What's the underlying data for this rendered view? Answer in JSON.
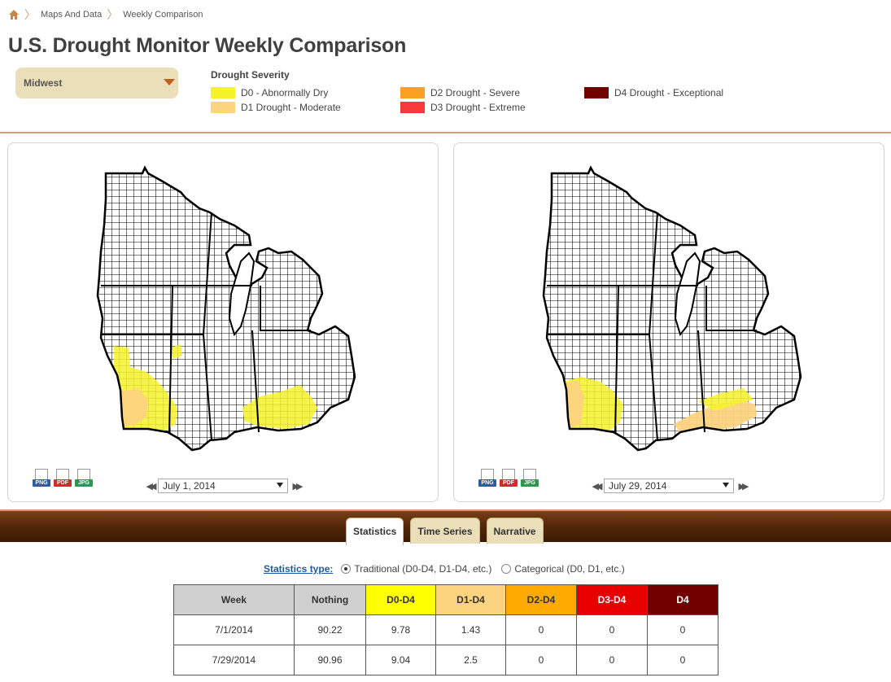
{
  "breadcrumb": {
    "items": [
      "Maps And Data",
      "Weekly Comparison"
    ]
  },
  "page_title": "U.S. Drought Monitor Weekly Comparison",
  "region_select": {
    "value": "Midwest"
  },
  "legend": {
    "title": "Drought Severity",
    "items": [
      {
        "label": "D0 - Abnormally Dry",
        "color": "#f5f22a"
      },
      {
        "label": "D1 Drought - Moderate",
        "color": "#fcd37f"
      },
      {
        "label": "D2 Drought - Severe",
        "color": "#fba020"
      },
      {
        "label": "D3 Drought - Extreme",
        "color": "#f8393a"
      },
      {
        "label": "D4 Drought - Exceptional",
        "color": "#730000"
      }
    ]
  },
  "left_map": {
    "date": "July 1, 2014"
  },
  "right_map": {
    "date": "July 29, 2014"
  },
  "exports": {
    "png": "PNG",
    "pdf": "PDF",
    "jpg": "JPG"
  },
  "tabs": [
    "Statistics",
    "Time Series",
    "Narrative"
  ],
  "statistics_type": {
    "label": "Statistics type",
    "options": [
      "Traditional (D0-D4, D1-D4, etc.)",
      "Categorical (D0, D1, etc.)"
    ],
    "selected": 0
  },
  "table": {
    "headers": [
      "Week",
      "Nothing",
      "D0-D4",
      "D1-D4",
      "D2-D4",
      "D3-D4",
      "D4"
    ],
    "header_colors": [
      "#d0d0d0",
      "#d0d0d0",
      "#ffff00",
      "#fcd37f",
      "#ffaa00",
      "#e60000",
      "#730000"
    ],
    "rows": [
      [
        "7/1/2014",
        "90.22",
        "9.78",
        "1.43",
        "0",
        "0",
        "0"
      ],
      [
        "7/29/2014",
        "90.96",
        "9.04",
        "2.5",
        "0",
        "0",
        "0"
      ]
    ]
  }
}
